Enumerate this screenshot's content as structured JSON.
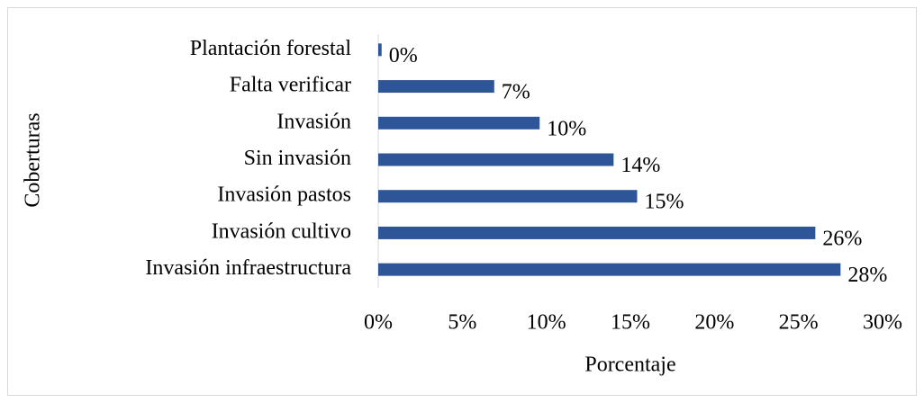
{
  "chart_data": {
    "type": "barh",
    "categories": [
      "Plantación forestal",
      "Falta verificar",
      "Invasión",
      "Sin invasión",
      "Invasión pastos",
      "Invasión cultivo",
      "Invasión infraestructura"
    ],
    "values": [
      0.2,
      6.9,
      9.6,
      14,
      15.4,
      26,
      27.5
    ],
    "value_labels": [
      "0%",
      "7%",
      "10%",
      "14%",
      "15%",
      "26%",
      "28%"
    ],
    "color": "#2e5597",
    "xlim": [
      0,
      30
    ],
    "xticks": [
      {
        "value": 0,
        "label": "0%"
      },
      {
        "value": 5,
        "label": "5%"
      },
      {
        "value": 10,
        "label": "10%"
      },
      {
        "value": 15,
        "label": "15%"
      },
      {
        "value": 20,
        "label": "20%"
      },
      {
        "value": 25,
        "label": "25%"
      },
      {
        "value": 30,
        "label": "30%"
      }
    ],
    "xlabel": "Porcentaje",
    "ylabel": "Coberturas",
    "grid": false
  }
}
